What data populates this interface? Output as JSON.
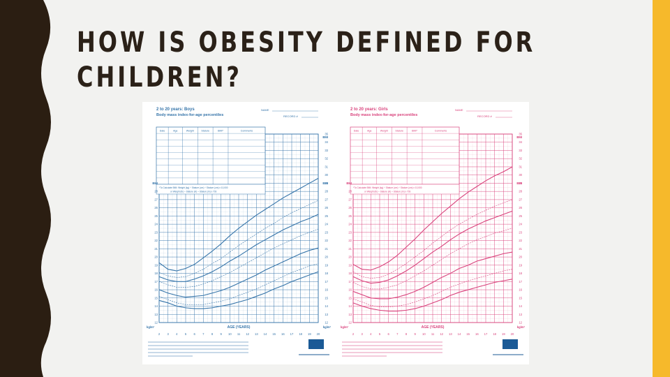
{
  "slide": {
    "title_line1": "HOW IS OBESITY DEFINED FOR",
    "title_line2": "CHILDREN?",
    "colors": {
      "accent": "#f6b92b",
      "band": "#2b1e12",
      "text": "#2b2118"
    }
  },
  "chart_data": [
    {
      "type": "line",
      "title": "2 to 20 years: Boys",
      "subtitle": "Body mass index-for-age percentiles",
      "name_label": "NAME",
      "record_label": "RECORD #",
      "table_headers": [
        "Date",
        "Age",
        "Weight",
        "Stature",
        "BMI*",
        "Comments"
      ],
      "formula_text": "*To Calculate BMI: Weight (kg) ÷ Stature (cm) ÷ Stature (cm) x 10,000",
      "formula_text2": "or Weight (lb) ÷ Stature (in) ÷ Stature (in) x 703",
      "xlabel": "AGE (YEARS)",
      "ylabel": "BMI",
      "yunit": "kg/m²",
      "xlim": [
        2,
        20
      ],
      "ylim": [
        12,
        35
      ],
      "x_ticks": [
        2,
        3,
        4,
        5,
        6,
        7,
        8,
        9,
        10,
        11,
        12,
        13,
        14,
        15,
        16,
        17,
        18,
        19,
        20
      ],
      "y_ticks": [
        12,
        13,
        14,
        15,
        16,
        17,
        18,
        19,
        20,
        21,
        22,
        23,
        24,
        25,
        26,
        27,
        28,
        29,
        30,
        31,
        32,
        33,
        34,
        35
      ],
      "x": [
        2,
        3,
        4,
        5,
        6,
        7,
        8,
        9,
        10,
        11,
        12,
        13,
        14,
        15,
        16,
        17,
        18,
        19,
        20
      ],
      "series": [
        {
          "values": [
            14.7,
            14.4,
            14.0,
            13.8,
            13.7,
            13.7,
            13.8,
            14.0,
            14.2,
            14.5,
            14.8,
            15.2,
            15.6,
            16.1,
            16.5,
            17.0,
            17.4,
            17.8,
            18.2
          ]
        },
        {
          "values": [
            15.2,
            14.8,
            14.4,
            14.2,
            14.2,
            14.2,
            14.4,
            14.6,
            14.9,
            15.3,
            15.7,
            16.1,
            16.6,
            17.1,
            17.6,
            18.1,
            18.5,
            18.9,
            19.2
          ]
        },
        {
          "values": [
            16.0,
            15.6,
            15.3,
            15.1,
            15.2,
            15.3,
            15.6,
            15.9,
            16.3,
            16.8,
            17.3,
            17.8,
            18.4,
            18.9,
            19.4,
            19.9,
            20.4,
            20.8,
            21.1
          ]
        },
        {
          "values": [
            17.0,
            16.6,
            16.3,
            16.3,
            16.4,
            16.7,
            17.1,
            17.6,
            18.1,
            18.7,
            19.3,
            19.9,
            20.5,
            21.1,
            21.6,
            22.1,
            22.6,
            23.0,
            23.4
          ]
        },
        {
          "values": [
            17.6,
            17.2,
            17.0,
            17.0,
            17.3,
            17.7,
            18.2,
            18.8,
            19.5,
            20.1,
            20.8,
            21.5,
            22.1,
            22.7,
            23.3,
            23.8,
            24.3,
            24.7,
            25.2
          ]
        },
        {
          "values": [
            18.1,
            17.7,
            17.5,
            17.6,
            18.0,
            18.5,
            19.2,
            19.8,
            20.6,
            21.4,
            22.1,
            22.8,
            23.5,
            24.1,
            24.8,
            25.4,
            25.9,
            26.4,
            26.9
          ]
        },
        {
          "values": [
            19.3,
            18.5,
            18.3,
            18.6,
            19.1,
            19.9,
            20.7,
            21.6,
            22.6,
            23.5,
            24.3,
            25.1,
            25.8,
            26.5,
            27.2,
            27.8,
            28.4,
            29.0,
            29.6
          ]
        }
      ],
      "color": "#3574a9",
      "grid": true
    },
    {
      "type": "line",
      "title": "2 to 20 years: Girls",
      "subtitle": "Body mass index-for-age percentiles",
      "name_label": "NAME",
      "record_label": "RECORD #",
      "table_headers": [
        "Date",
        "Age",
        "Weight",
        "Stature",
        "BMI*",
        "Comments"
      ],
      "formula_text": "*To Calculate BMI: Weight (kg) ÷ Stature (cm) ÷ Stature (cm) x 10,000",
      "formula_text2": "or Weight (lb) ÷ Stature (in) ÷ Stature (in) x 703",
      "xlabel": "AGE (YEARS)",
      "ylabel": "BMI",
      "yunit": "kg/m²",
      "xlim": [
        2,
        20
      ],
      "ylim": [
        12,
        35
      ],
      "x_ticks": [
        2,
        3,
        4,
        5,
        6,
        7,
        8,
        9,
        10,
        11,
        12,
        13,
        14,
        15,
        16,
        17,
        18,
        19,
        20
      ],
      "y_ticks": [
        12,
        13,
        14,
        15,
        16,
        17,
        18,
        19,
        20,
        21,
        22,
        23,
        24,
        25,
        26,
        27,
        28,
        29,
        30,
        31,
        32,
        33,
        34,
        35
      ],
      "x": [
        2,
        3,
        4,
        5,
        6,
        7,
        8,
        9,
        10,
        11,
        12,
        13,
        14,
        15,
        16,
        17,
        18,
        19,
        20
      ],
      "series": [
        {
          "values": [
            14.4,
            14.0,
            13.7,
            13.5,
            13.4,
            13.4,
            13.5,
            13.7,
            14.0,
            14.4,
            14.8,
            15.3,
            15.7,
            16.0,
            16.3,
            16.6,
            16.9,
            17.1,
            17.3
          ]
        },
        {
          "values": [
            14.9,
            14.5,
            14.1,
            13.9,
            13.9,
            14.0,
            14.2,
            14.5,
            14.9,
            15.3,
            15.8,
            16.3,
            16.7,
            17.1,
            17.4,
            17.7,
            18.0,
            18.3,
            18.5
          ]
        },
        {
          "values": [
            15.8,
            15.4,
            15.0,
            14.9,
            14.9,
            15.1,
            15.4,
            15.8,
            16.3,
            16.9,
            17.5,
            18.0,
            18.6,
            19.0,
            19.5,
            19.8,
            20.1,
            20.4,
            20.6
          ]
        },
        {
          "values": [
            16.9,
            16.4,
            16.1,
            16.1,
            16.3,
            16.6,
            17.1,
            17.7,
            18.3,
            19.0,
            19.7,
            20.4,
            21.0,
            21.6,
            22.1,
            22.5,
            22.9,
            23.2,
            23.5
          ]
        },
        {
          "values": [
            17.6,
            17.1,
            16.8,
            16.9,
            17.2,
            17.7,
            18.3,
            19.0,
            19.8,
            20.6,
            21.3,
            22.1,
            22.8,
            23.4,
            23.9,
            24.4,
            24.8,
            25.2,
            25.6
          ]
        },
        {
          "values": [
            18.2,
            17.6,
            17.4,
            17.5,
            17.9,
            18.5,
            19.2,
            20.0,
            20.8,
            21.7,
            22.5,
            23.3,
            24.0,
            24.6,
            25.2,
            25.7,
            26.2,
            26.6,
            27.0
          ]
        },
        {
          "values": [
            19.1,
            18.5,
            18.4,
            18.8,
            19.4,
            20.2,
            21.2,
            22.2,
            23.3,
            24.3,
            25.3,
            26.2,
            27.1,
            27.9,
            28.6,
            29.3,
            29.9,
            30.4,
            31.0
          ]
        }
      ],
      "color": "#d9427c",
      "grid": true
    }
  ]
}
